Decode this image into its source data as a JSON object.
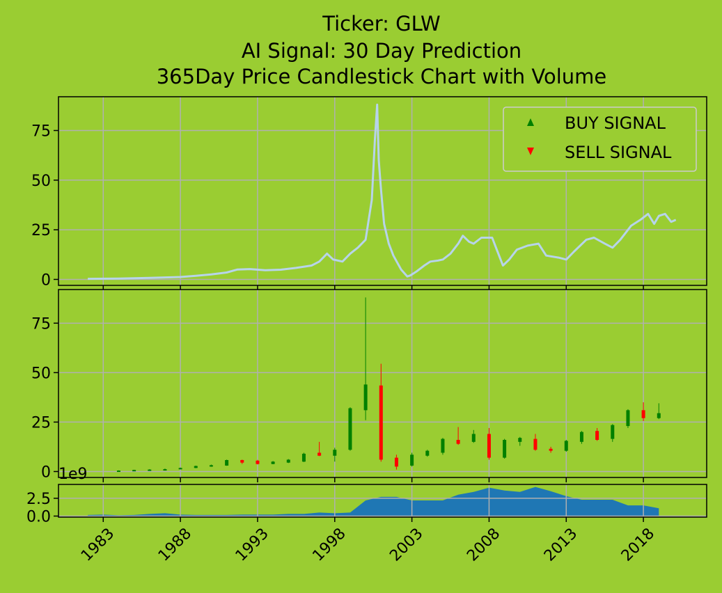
{
  "figure": {
    "background": "#9acd32",
    "title_lines": [
      "Ticker: GLW",
      "AI Signal: 30 Day Prediction",
      "365Day Price Candlestick Chart with Volume"
    ]
  },
  "chart_data": [
    {
      "type": "line",
      "name": "price-panel",
      "line_color": "#b7d4ea",
      "x_range": [
        1980.1,
        2022.1
      ],
      "ylim": [
        -3,
        92
      ],
      "yticks": [
        0,
        25,
        50,
        75
      ],
      "xticks": [
        1983,
        1988,
        1993,
        1998,
        2003,
        2008,
        2013,
        2018
      ],
      "grid": true,
      "legend": {
        "placement": "top-right",
        "entries": [
          {
            "label": "BUY SIGNAL",
            "marker": "triangle-up",
            "color": "#008000"
          },
          {
            "label": "SELL SIGNAL",
            "marker": "triangle-down",
            "color": "#ff0000"
          }
        ]
      },
      "points": [
        [
          1982.0,
          0.3
        ],
        [
          1984.0,
          0.4
        ],
        [
          1986.0,
          0.8
        ],
        [
          1988.0,
          1.2
        ],
        [
          1989.0,
          1.8
        ],
        [
          1990.0,
          2.5
        ],
        [
          1991.0,
          3.5
        ],
        [
          1991.7,
          5.0
        ],
        [
          1992.5,
          5.2
        ],
        [
          1993.5,
          4.6
        ],
        [
          1994.5,
          4.9
        ],
        [
          1995.5,
          5.8
        ],
        [
          1996.5,
          7.0
        ],
        [
          1997.0,
          9.0
        ],
        [
          1997.5,
          13.0
        ],
        [
          1997.9,
          10.0
        ],
        [
          1998.5,
          9.0
        ],
        [
          1999.0,
          13.0
        ],
        [
          1999.5,
          16.0
        ],
        [
          2000.0,
          20.0
        ],
        [
          2000.4,
          40.0
        ],
        [
          2000.6,
          70.0
        ],
        [
          2000.75,
          88.0
        ],
        [
          2000.85,
          60.0
        ],
        [
          2001.0,
          45.0
        ],
        [
          2001.2,
          28.0
        ],
        [
          2001.5,
          18.0
        ],
        [
          2001.8,
          12.0
        ],
        [
          2002.3,
          5.0
        ],
        [
          2002.7,
          1.5
        ],
        [
          2002.9,
          2.0
        ],
        [
          2003.3,
          4.0
        ],
        [
          2003.8,
          7.0
        ],
        [
          2004.2,
          9.0
        ],
        [
          2004.7,
          9.5
        ],
        [
          2005.0,
          10.0
        ],
        [
          2005.5,
          13.0
        ],
        [
          2006.0,
          18.0
        ],
        [
          2006.3,
          22.0
        ],
        [
          2006.7,
          19.0
        ],
        [
          2007.0,
          18.0
        ],
        [
          2007.5,
          21.0
        ],
        [
          2008.2,
          21.0
        ],
        [
          2008.5,
          15.0
        ],
        [
          2008.9,
          7.0
        ],
        [
          2009.3,
          10.0
        ],
        [
          2009.8,
          15.0
        ],
        [
          2010.5,
          17.0
        ],
        [
          2011.2,
          18.0
        ],
        [
          2011.7,
          12.0
        ],
        [
          2012.5,
          11.0
        ],
        [
          2013.0,
          10.0
        ],
        [
          2013.5,
          14.0
        ],
        [
          2014.3,
          20.0
        ],
        [
          2014.8,
          21.0
        ],
        [
          2015.5,
          18.0
        ],
        [
          2016.0,
          16.0
        ],
        [
          2016.5,
          20.0
        ],
        [
          2017.2,
          27.0
        ],
        [
          2017.8,
          30.0
        ],
        [
          2018.3,
          33.0
        ],
        [
          2018.7,
          28.0
        ],
        [
          2019.0,
          32.0
        ],
        [
          2019.4,
          33.0
        ],
        [
          2019.8,
          29.0
        ],
        [
          2020.1,
          30.0
        ]
      ]
    },
    {
      "type": "candlestick",
      "name": "yearly-candles",
      "up_color": "#008000",
      "down_color": "#ff0000",
      "x_range": [
        1980.1,
        2022.1
      ],
      "ylim": [
        -3,
        92
      ],
      "yticks": [
        0,
        25,
        50,
        75
      ],
      "grid": true,
      "candles": [
        {
          "x": 1984,
          "open": 0.3,
          "close": 0.5,
          "high": 0.6,
          "low": 0.3
        },
        {
          "x": 1985,
          "open": 0.5,
          "close": 0.8,
          "high": 0.9,
          "low": 0.4
        },
        {
          "x": 1986,
          "open": 0.8,
          "close": 1.0,
          "high": 1.2,
          "low": 0.7
        },
        {
          "x": 1987,
          "open": 1.0,
          "close": 1.2,
          "high": 1.5,
          "low": 0.9
        },
        {
          "x": 1988,
          "open": 1.2,
          "close": 1.8,
          "high": 2.0,
          "low": 1.1
        },
        {
          "x": 1989,
          "open": 1.8,
          "close": 2.8,
          "high": 3.0,
          "low": 1.7
        },
        {
          "x": 1990,
          "open": 2.5,
          "close": 3.2,
          "high": 3.5,
          "low": 2.4
        },
        {
          "x": 1991,
          "open": 3.0,
          "close": 5.8,
          "high": 6.0,
          "low": 2.9
        },
        {
          "x": 1992,
          "open": 5.8,
          "close": 4.5,
          "high": 6.0,
          "low": 3.8
        },
        {
          "x": 1993,
          "open": 5.5,
          "close": 3.8,
          "high": 5.9,
          "low": 3.6
        },
        {
          "x": 1994,
          "open": 3.8,
          "close": 5.0,
          "high": 5.3,
          "low": 3.7
        },
        {
          "x": 1995,
          "open": 4.5,
          "close": 6.0,
          "high": 6.3,
          "low": 4.3
        },
        {
          "x": 1996,
          "open": 5.0,
          "close": 9.0,
          "high": 9.5,
          "low": 4.8
        },
        {
          "x": 1997,
          "open": 9.5,
          "close": 8.0,
          "high": 15.0,
          "low": 7.8
        },
        {
          "x": 1998,
          "open": 8.0,
          "close": 11.0,
          "high": 12.0,
          "low": 5.0
        },
        {
          "x": 1999,
          "open": 11.0,
          "close": 32.0,
          "high": 32.5,
          "low": 10.5
        },
        {
          "x": 2000,
          "open": 31.0,
          "close": 44.0,
          "high": 88.0,
          "low": 26.0
        },
        {
          "x": 2001,
          "open": 43.5,
          "close": 6.0,
          "high": 54.5,
          "low": 5.0
        },
        {
          "x": 2002,
          "open": 7.0,
          "close": 2.5,
          "high": 8.5,
          "low": 1.0
        },
        {
          "x": 2003,
          "open": 3.0,
          "close": 8.5,
          "high": 9.5,
          "low": 2.5
        },
        {
          "x": 2004,
          "open": 8.0,
          "close": 10.5,
          "high": 11.0,
          "low": 7.5
        },
        {
          "x": 2005,
          "open": 9.5,
          "close": 16.5,
          "high": 17.0,
          "low": 8.5
        },
        {
          "x": 2006,
          "open": 16.0,
          "close": 14.0,
          "high": 22.5,
          "low": 13.5
        },
        {
          "x": 2007,
          "open": 15.0,
          "close": 19.0,
          "high": 21.0,
          "low": 14.5
        },
        {
          "x": 2008,
          "open": 19.0,
          "close": 7.0,
          "high": 22.0,
          "low": 6.0
        },
        {
          "x": 2009,
          "open": 7.0,
          "close": 16.0,
          "high": 16.5,
          "low": 6.5
        },
        {
          "x": 2010,
          "open": 15.0,
          "close": 17.0,
          "high": 17.5,
          "low": 13.0
        },
        {
          "x": 2011,
          "open": 16.5,
          "close": 11.0,
          "high": 19.0,
          "low": 10.5
        },
        {
          "x": 2012,
          "open": 11.5,
          "close": 10.5,
          "high": 12.5,
          "low": 9.5
        },
        {
          "x": 2013,
          "open": 10.5,
          "close": 15.5,
          "high": 16.0,
          "low": 10.0
        },
        {
          "x": 2014,
          "open": 15.0,
          "close": 20.0,
          "high": 20.5,
          "low": 14.0
        },
        {
          "x": 2015,
          "open": 20.5,
          "close": 16.0,
          "high": 22.0,
          "low": 15.5
        },
        {
          "x": 2016,
          "open": 16.5,
          "close": 23.5,
          "high": 24.0,
          "low": 15.0
        },
        {
          "x": 2017,
          "open": 23.0,
          "close": 31.0,
          "high": 31.5,
          "low": 22.0
        },
        {
          "x": 2018,
          "open": 31.0,
          "close": 27.0,
          "high": 35.0,
          "low": 25.5
        },
        {
          "x": 2019,
          "open": 27.0,
          "close": 29.5,
          "high": 34.5,
          "low": 26.5
        }
      ]
    },
    {
      "type": "area",
      "name": "volume",
      "color": "#1f77b4",
      "x_range": [
        1980.1,
        2022.1
      ],
      "ylim": [
        -0.15,
        4.45
      ],
      "yticks": [
        0.0,
        2.5
      ],
      "ytick_labels": [
        "0.0",
        "2.5"
      ],
      "offset_label": "1e9",
      "xticks": [
        1983,
        1988,
        1993,
        1998,
        2003,
        2008,
        2013,
        2018
      ],
      "grid": true,
      "points": [
        [
          1982,
          0.15
        ],
        [
          1983,
          0.2
        ],
        [
          1984,
          0.1
        ],
        [
          1985,
          0.15
        ],
        [
          1986,
          0.3
        ],
        [
          1987,
          0.4
        ],
        [
          1988,
          0.2
        ],
        [
          1989,
          0.15
        ],
        [
          1990,
          0.15
        ],
        [
          1991,
          0.15
        ],
        [
          1992,
          0.2
        ],
        [
          1993,
          0.2
        ],
        [
          1994,
          0.2
        ],
        [
          1995,
          0.3
        ],
        [
          1996,
          0.3
        ],
        [
          1997,
          0.5
        ],
        [
          1998,
          0.4
        ],
        [
          1999,
          0.5
        ],
        [
          2000,
          2.2
        ],
        [
          2001,
          2.7
        ],
        [
          2002,
          2.7
        ],
        [
          2003,
          2.2
        ],
        [
          2004,
          2.2
        ],
        [
          2005,
          2.2
        ],
        [
          2006,
          3.0
        ],
        [
          2007,
          3.4
        ],
        [
          2008,
          4.0
        ],
        [
          2009,
          3.6
        ],
        [
          2010,
          3.4
        ],
        [
          2011,
          4.1
        ],
        [
          2012,
          3.5
        ],
        [
          2013,
          2.8
        ],
        [
          2014,
          2.3
        ],
        [
          2015,
          2.3
        ],
        [
          2016,
          2.3
        ],
        [
          2017,
          1.5
        ],
        [
          2018,
          1.5
        ],
        [
          2019,
          1.1
        ]
      ]
    }
  ]
}
